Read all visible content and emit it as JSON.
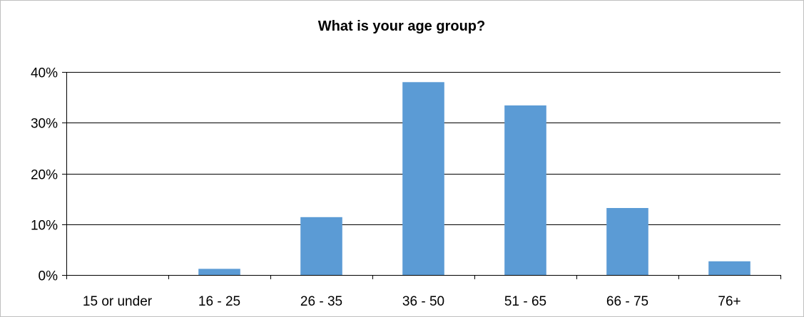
{
  "chart_data": {
    "type": "bar",
    "title": "What is your age group?",
    "xlabel": "",
    "ylabel": "",
    "categories": [
      "15 or under",
      "16 - 25",
      "26 - 35",
      "36 - 50",
      "51 - 65",
      "66 - 75",
      "76+"
    ],
    "values": [
      0,
      1.2,
      11.4,
      38.0,
      33.4,
      13.2,
      2.7
    ],
    "ylim": [
      0,
      40
    ],
    "yticks": [
      0,
      10,
      20,
      30,
      40
    ],
    "ytick_labels": [
      "0%",
      "10%",
      "20%",
      "30%",
      "40%"
    ],
    "grid": true,
    "legend": "none",
    "bar_color": "#5b9bd5",
    "grid_color": "#000000"
  }
}
